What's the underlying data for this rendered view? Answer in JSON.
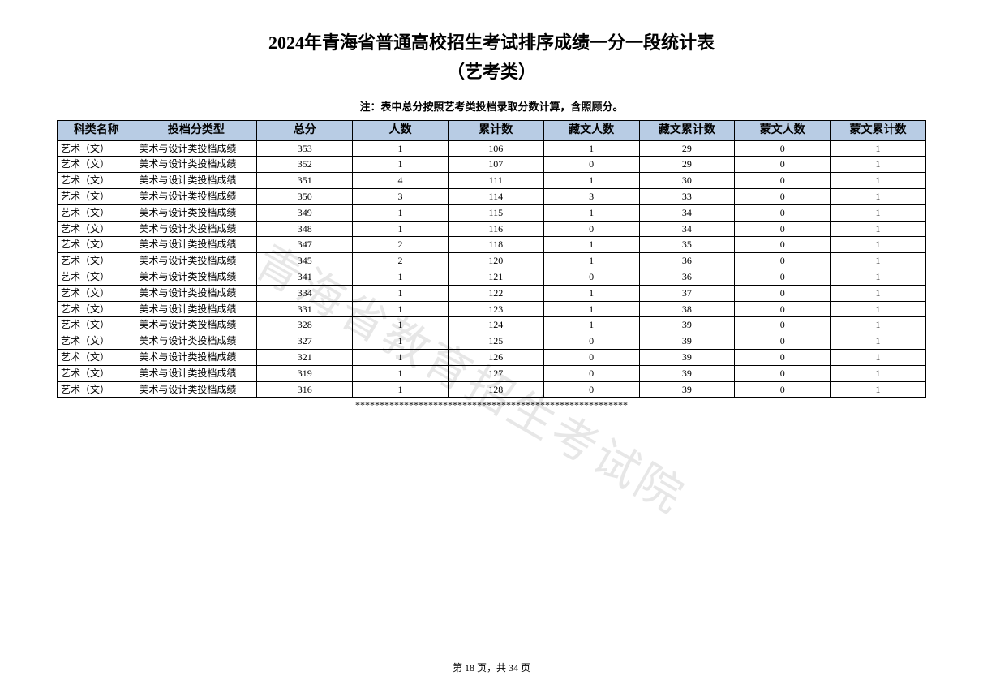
{
  "title": "2024年青海省普通高校招生考试排序成绩一分一段统计表",
  "subtitle": "（艺考类）",
  "note": "注：表中总分按照艺考类投档录取分数计算，含照顾分。",
  "watermark": "青海省教育招生考试院",
  "separator": "********************************************************",
  "footer": "第 18 页，共 34 页",
  "table": {
    "header_bg": "#b8cce4",
    "border_color": "#000000",
    "columns": [
      "科类名称",
      "投档分类型",
      "总分",
      "人数",
      "累计数",
      "藏文人数",
      "藏文累计数",
      "蒙文人数",
      "蒙文累计数"
    ],
    "col_align": [
      "left",
      "left",
      "center",
      "center",
      "center",
      "center",
      "center",
      "center",
      "center"
    ],
    "rows": [
      [
        "艺术（文）",
        "美术与设计类投档成绩",
        "353",
        "1",
        "106",
        "1",
        "29",
        "0",
        "1"
      ],
      [
        "艺术（文）",
        "美术与设计类投档成绩",
        "352",
        "1",
        "107",
        "0",
        "29",
        "0",
        "1"
      ],
      [
        "艺术（文）",
        "美术与设计类投档成绩",
        "351",
        "4",
        "111",
        "1",
        "30",
        "0",
        "1"
      ],
      [
        "艺术（文）",
        "美术与设计类投档成绩",
        "350",
        "3",
        "114",
        "3",
        "33",
        "0",
        "1"
      ],
      [
        "艺术（文）",
        "美术与设计类投档成绩",
        "349",
        "1",
        "115",
        "1",
        "34",
        "0",
        "1"
      ],
      [
        "艺术（文）",
        "美术与设计类投档成绩",
        "348",
        "1",
        "116",
        "0",
        "34",
        "0",
        "1"
      ],
      [
        "艺术（文）",
        "美术与设计类投档成绩",
        "347",
        "2",
        "118",
        "1",
        "35",
        "0",
        "1"
      ],
      [
        "艺术（文）",
        "美术与设计类投档成绩",
        "345",
        "2",
        "120",
        "1",
        "36",
        "0",
        "1"
      ],
      [
        "艺术（文）",
        "美术与设计类投档成绩",
        "341",
        "1",
        "121",
        "0",
        "36",
        "0",
        "1"
      ],
      [
        "艺术（文）",
        "美术与设计类投档成绩",
        "334",
        "1",
        "122",
        "1",
        "37",
        "0",
        "1"
      ],
      [
        "艺术（文）",
        "美术与设计类投档成绩",
        "331",
        "1",
        "123",
        "1",
        "38",
        "0",
        "1"
      ],
      [
        "艺术（文）",
        "美术与设计类投档成绩",
        "328",
        "1",
        "124",
        "1",
        "39",
        "0",
        "1"
      ],
      [
        "艺术（文）",
        "美术与设计类投档成绩",
        "327",
        "1",
        "125",
        "0",
        "39",
        "0",
        "1"
      ],
      [
        "艺术（文）",
        "美术与设计类投档成绩",
        "321",
        "1",
        "126",
        "0",
        "39",
        "0",
        "1"
      ],
      [
        "艺术（文）",
        "美术与设计类投档成绩",
        "319",
        "1",
        "127",
        "0",
        "39",
        "0",
        "1"
      ],
      [
        "艺术（文）",
        "美术与设计类投档成绩",
        "316",
        "1",
        "128",
        "0",
        "39",
        "0",
        "1"
      ]
    ]
  }
}
